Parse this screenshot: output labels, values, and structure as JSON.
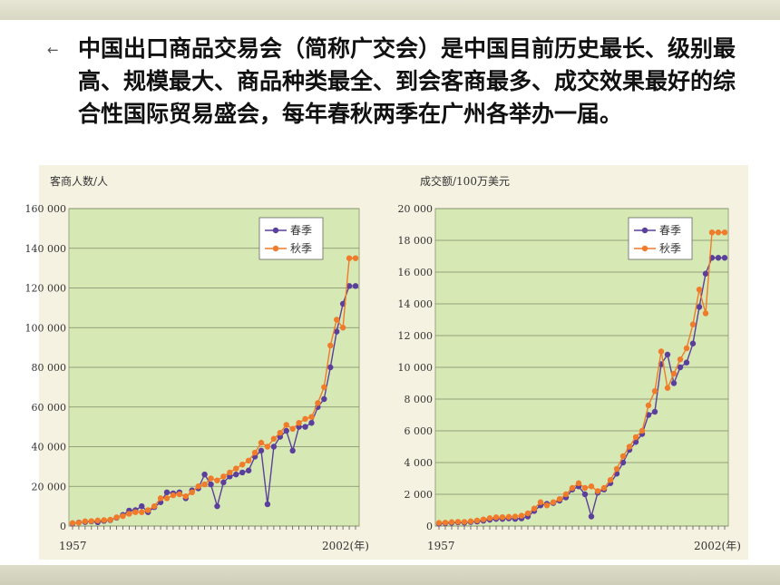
{
  "slide": {
    "bullet": "←",
    "paragraph": "中国出口商品交易会（简称广交会）是中国目前历史最长、级别最高、规模最大、商品种类最全、到会客商最多、成交效果最好的综合性国际贸易盛会，每年春秋两季在广州各举办一届。"
  },
  "colors": {
    "spring": "#5b3f9c",
    "autumn": "#f07b2a",
    "plot_bg": "#d6e8b4",
    "figure_bg": "#f6f2e2"
  },
  "chart_data": [
    {
      "type": "line",
      "title": "客商人数/人",
      "x_start_label": "1957",
      "x_end_label": "2002(年)",
      "ylim": [
        0,
        160000
      ],
      "yticks": [
        "0",
        "20 000",
        "40 000",
        "60 000",
        "80 000",
        "100 000",
        "120 000",
        "140 000",
        "160 000"
      ],
      "ytick_values": [
        0,
        20000,
        40000,
        60000,
        80000,
        100000,
        120000,
        140000,
        160000
      ],
      "legend_position": "top-right",
      "grid": true,
      "x": [
        1957,
        1958,
        1959,
        1960,
        1961,
        1962,
        1963,
        1964,
        1965,
        1966,
        1967,
        1968,
        1969,
        1970,
        1971,
        1972,
        1973,
        1974,
        1975,
        1976,
        1977,
        1978,
        1979,
        1980,
        1981,
        1982,
        1983,
        1984,
        1985,
        1986,
        1987,
        1988,
        1989,
        1990,
        1991,
        1992,
        1993,
        1994,
        1995,
        1996,
        1997,
        1998,
        1999,
        2000,
        2001,
        2002
      ],
      "series": [
        {
          "name": "春季",
          "values": [
            1200,
            1800,
            2000,
            2300,
            1900,
            2600,
            3000,
            4200,
            5600,
            7800,
            8000,
            10000,
            7000,
            9500,
            12000,
            17000,
            16500,
            17000,
            14000,
            18000,
            19000,
            26000,
            21000,
            10000,
            22000,
            25000,
            26000,
            27000,
            28000,
            35000,
            38000,
            11000,
            40000,
            45000,
            48000,
            38000,
            50000,
            50000,
            52000,
            60000,
            64000,
            80000,
            98000,
            112000,
            121000,
            121000
          ]
        },
        {
          "name": "秋季",
          "values": [
            1500,
            1700,
            2400,
            2500,
            2800,
            3000,
            3200,
            4400,
            5000,
            6200,
            7000,
            7000,
            8000,
            10000,
            14000,
            14000,
            15500,
            16000,
            15000,
            17000,
            20000,
            21000,
            24000,
            23000,
            25000,
            27000,
            29000,
            31000,
            33000,
            37000,
            42000,
            40000,
            44000,
            47000,
            51000,
            49000,
            52000,
            54000,
            55000,
            62000,
            70000,
            91000,
            104000,
            100000,
            135000,
            135000
          ]
        }
      ]
    },
    {
      "type": "line",
      "title": "成交额/100万美元",
      "x_start_label": "1957",
      "x_end_label": "2002(年)",
      "ylim": [
        0,
        20000
      ],
      "yticks": [
        "0",
        "2 000",
        "4 000",
        "6 000",
        "8 000",
        "10 000",
        "12 000",
        "14 000",
        "16 000",
        "18 000",
        "20 000"
      ],
      "ytick_values": [
        0,
        2000,
        4000,
        6000,
        8000,
        10000,
        12000,
        14000,
        16000,
        18000,
        20000
      ],
      "legend_position": "top-right",
      "grid": true,
      "x": [
        1957,
        1958,
        1959,
        1960,
        1961,
        1962,
        1963,
        1964,
        1965,
        1966,
        1967,
        1968,
        1969,
        1970,
        1971,
        1972,
        1973,
        1974,
        1975,
        1976,
        1977,
        1978,
        1979,
        1980,
        1981,
        1982,
        1983,
        1984,
        1985,
        1986,
        1987,
        1988,
        1989,
        1990,
        1991,
        1992,
        1993,
        1994,
        1995,
        1996,
        1997,
        1998,
        1999,
        2000,
        2001,
        2002
      ],
      "series": [
        {
          "name": "春季",
          "values": [
            150,
            180,
            200,
            230,
            210,
            250,
            280,
            340,
            400,
            450,
            450,
            480,
            450,
            480,
            600,
            950,
            1300,
            1400,
            1450,
            1600,
            1800,
            2300,
            2500,
            2000,
            600,
            2100,
            2300,
            2700,
            3300,
            4000,
            4800,
            5300,
            5800,
            7000,
            7200,
            10200,
            10800,
            9000,
            10000,
            10300,
            11500,
            13800,
            15900,
            16900,
            16900,
            16900
          ]
        },
        {
          "name": "秋季",
          "values": [
            200,
            220,
            250,
            270,
            260,
            300,
            350,
            420,
            500,
            550,
            560,
            580,
            600,
            650,
            800,
            1100,
            1500,
            1300,
            1500,
            1700,
            2000,
            2400,
            2700,
            2400,
            2500,
            2200,
            2400,
            2900,
            3600,
            4400,
            5000,
            5600,
            6000,
            7600,
            8500,
            11000,
            8700,
            9600,
            10500,
            11200,
            12700,
            14900,
            13400,
            18500,
            18500,
            18500
          ]
        }
      ]
    }
  ]
}
